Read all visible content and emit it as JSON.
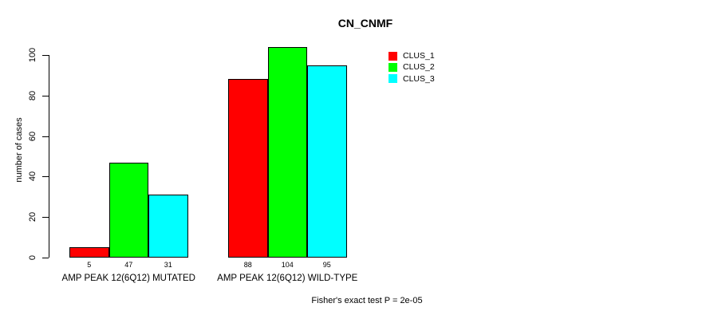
{
  "chart_data": {
    "type": "bar",
    "title": "CN_CNMF",
    "ylabel": "number of cases",
    "ylim": [
      0,
      100
    ],
    "yticks": [
      0,
      20,
      40,
      60,
      80,
      100
    ],
    "categories": [
      "AMP PEAK 12(6Q12) MUTATED",
      "AMP PEAK 12(6Q12) WILD-TYPE"
    ],
    "series": [
      {
        "name": "CLUS_1",
        "color": "#ff0000",
        "values": [
          5,
          88
        ]
      },
      {
        "name": "CLUS_2",
        "color": "#00ff00",
        "values": [
          47,
          104
        ]
      },
      {
        "name": "CLUS_3",
        "color": "#00ffff",
        "values": [
          31,
          95
        ]
      }
    ],
    "bar_value_labels": [
      [
        5,
        47,
        31
      ],
      [
        88,
        104,
        95
      ]
    ],
    "legend_position": "top-right",
    "grid": false,
    "annotation": "Fisher's exact test P = 2e-05"
  }
}
